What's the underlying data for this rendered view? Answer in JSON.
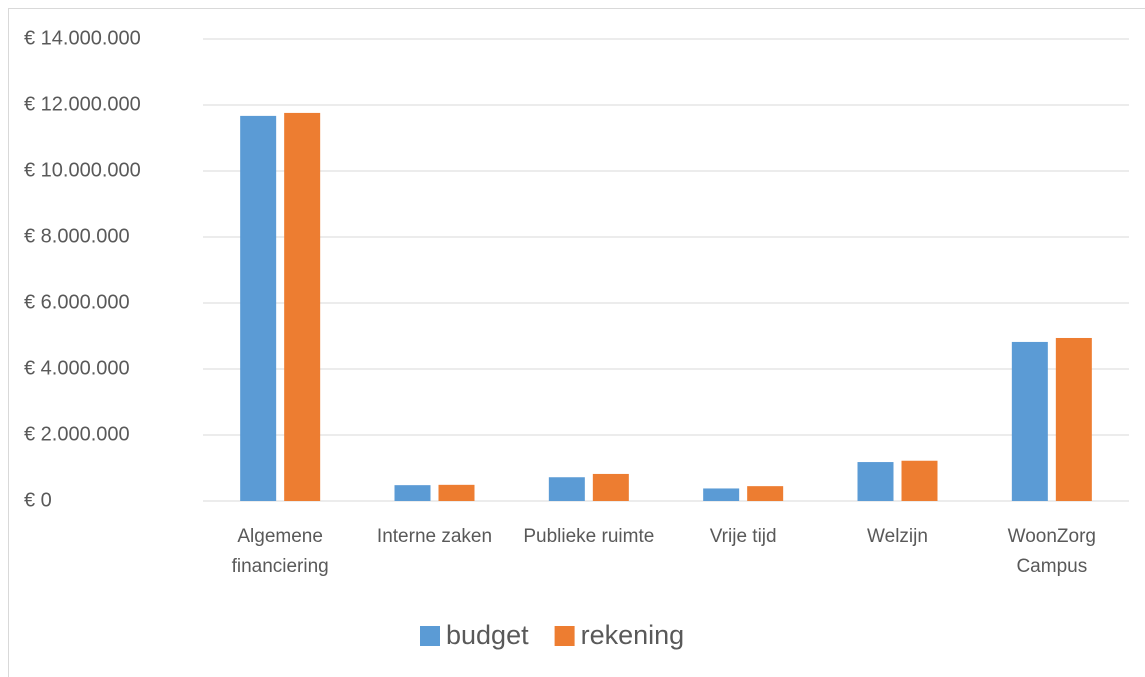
{
  "chart_data": {
    "type": "bar",
    "categories": [
      "Algemene financiering",
      "Interne zaken",
      "Publieke ruimte",
      "Vrije tijd",
      "Welzijn",
      "WoonZorg Campus"
    ],
    "series": [
      {
        "name": "budget",
        "color": "#5b9bd5",
        "values": [
          11670000,
          480000,
          720000,
          380000,
          1180000,
          4820000
        ]
      },
      {
        "name": "rekening",
        "color": "#ed7d31",
        "values": [
          11760000,
          490000,
          820000,
          450000,
          1220000,
          4940000
        ]
      }
    ],
    "ylim": [
      0,
      14000000
    ],
    "yticks": [
      {
        "value": 0,
        "label": "€ 0"
      },
      {
        "value": 2000000,
        "label": "€ 2.000.000"
      },
      {
        "value": 4000000,
        "label": "€ 4.000.000"
      },
      {
        "value": 6000000,
        "label": "€ 6.000.000"
      },
      {
        "value": 8000000,
        "label": "€ 8.000.000"
      },
      {
        "value": 10000000,
        "label": "€ 10.000.000"
      },
      {
        "value": 12000000,
        "label": "€ 12.000.000"
      },
      {
        "value": 14000000,
        "label": "€ 14.000.000"
      }
    ],
    "grid": true,
    "legend": "bottom"
  }
}
